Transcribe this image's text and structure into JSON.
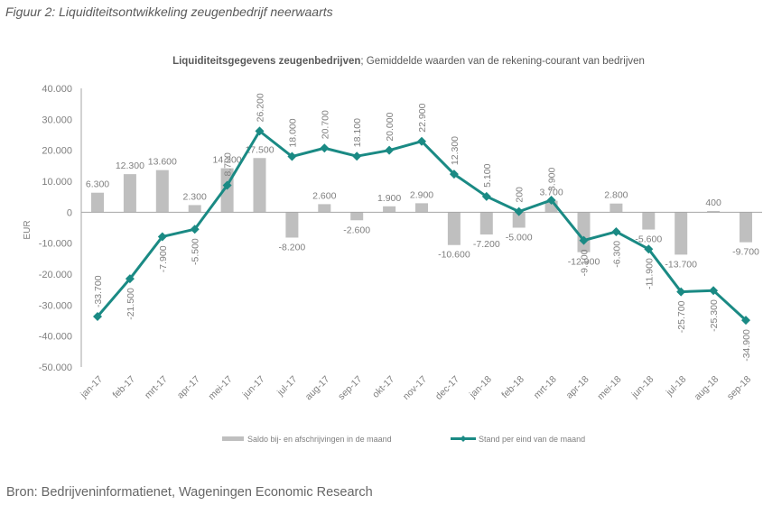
{
  "figure": {
    "caption": "Figuur 2: Liquiditeitsontwikkeling zeugenbedrijf neerwaarts",
    "source": "Bron: Bedrijveninformatienet, Wageningen Economic Research"
  },
  "chart_data": {
    "type": "bar+line",
    "title_bold": "Liquiditeitsgegevens zeugenbedrijven",
    "title_rest": "; Gemiddelde waarden van de rekening-courant van bedrijven",
    "xlabel": "",
    "ylabel": "EUR",
    "ylim": [
      -50000,
      40000
    ],
    "yticks": [
      40000,
      30000,
      20000,
      10000,
      0,
      -10000,
      -20000,
      -30000,
      -40000,
      -50000
    ],
    "ytick_labels": [
      "40.000",
      "30.000",
      "20.000",
      "10.000",
      "0",
      "-10.000",
      "-20.000",
      "-30.000",
      "-40.000",
      "-50.000"
    ],
    "grid": false,
    "legend_position": "bottom",
    "categories": [
      "jan-17",
      "feb-17",
      "mrt-17",
      "apr-17",
      "mei-17",
      "jun-17",
      "jul-17",
      "aug-17",
      "sep-17",
      "okt-17",
      "nov-17",
      "dec-17",
      "jan-18",
      "feb-18",
      "mrt-18",
      "apr-18",
      "mei-18",
      "jun-18",
      "jul-18",
      "aug-18",
      "sep-18"
    ],
    "series": [
      {
        "name": "Saldo bij- en afschrijvingen in de maand",
        "kind": "bar",
        "color": "#bfbfbf",
        "values": [
          6300,
          12300,
          13600,
          2300,
          14200,
          17500,
          -8200,
          2600,
          -2600,
          1900,
          2900,
          -10600,
          -7200,
          -5000,
          3700,
          -12900,
          2800,
          -5600,
          -13700,
          400,
          -9700
        ],
        "labels": [
          "6.300",
          "12.300",
          "13.600",
          "2.300",
          "14.200",
          "17.500",
          "-8.200",
          "2.600",
          "-2.600",
          "1.900",
          "2.900",
          "-10.600",
          "-7.200",
          "-5.000",
          "3.700",
          "-12.900",
          "2.800",
          "-5.600",
          "-13.700",
          "400",
          "-9.700"
        ]
      },
      {
        "name": "Stand per eind van de maand",
        "kind": "line",
        "color": "#1a8a84",
        "values": [
          -33700,
          -21500,
          -7900,
          -5500,
          8700,
          26200,
          18000,
          20700,
          18100,
          20000,
          22900,
          12300,
          5100,
          200,
          3900,
          -9100,
          -6300,
          -11900,
          -25700,
          -25300,
          -34900
        ],
        "labels": [
          "-33.700",
          "-21.500",
          "-7.900",
          "-5.500",
          "8.700",
          "26.200",
          "18.000",
          "20.700",
          "18.100",
          "20.000",
          "22.900",
          "12.300",
          "5.100",
          "200",
          "3.900",
          "-9.100",
          "-6.300",
          "-11.900",
          "-25.700",
          "-25.300",
          "-34.900"
        ]
      }
    ]
  }
}
